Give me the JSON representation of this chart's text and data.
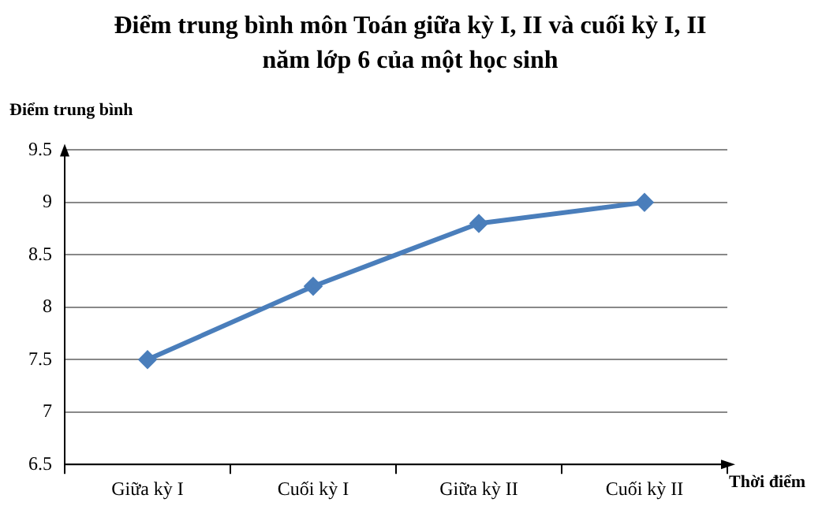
{
  "chart_data": {
    "type": "line",
    "title": "Điểm trung bình môn Toán giữa kỳ I, II và cuối kỳ I, II năm lớp 6 của một học sinh",
    "xlabel": "Thời điểm",
    "ylabel": "Điểm trung bình",
    "categories": [
      "Giữa kỳ I",
      "Cuối kỳ I",
      "Giữa kỳ II",
      "Cuối kỳ II"
    ],
    "series": [
      {
        "color": "#4a7ebb",
        "values": [
          7.5,
          8.2,
          8.8,
          9
        ]
      }
    ],
    "ylim": [
      6.5,
      9.5
    ],
    "yticks": [
      6.5,
      7,
      7.5,
      8,
      8.5,
      9,
      9.5
    ],
    "grid": "y",
    "legend": false,
    "marker": "diamond",
    "line_style": "solid"
  }
}
